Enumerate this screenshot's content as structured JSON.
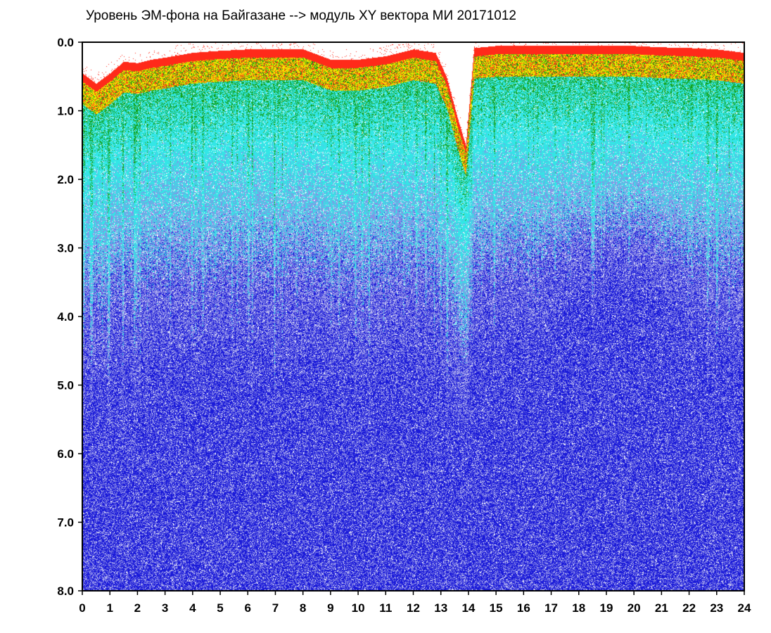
{
  "chart_data": {
    "type": "heatmap",
    "title": "Уровень ЭМ-фона на Байгазане  -->  модуль XY вектора МИ  20171012",
    "xlabel": "",
    "ylabel": "",
    "xlim": [
      0,
      24
    ],
    "ylim": [
      0,
      8
    ],
    "y_inverted": true,
    "grid": false,
    "x_ticks": [
      "0",
      "1",
      "2",
      "3",
      "4",
      "5",
      "6",
      "7",
      "8",
      "9",
      "10",
      "11",
      "12",
      "13",
      "14",
      "15",
      "16",
      "17",
      "18",
      "19",
      "20",
      "21",
      "22",
      "23",
      "24"
    ],
    "y_ticks": [
      "0.0",
      "1.0",
      "2.0",
      "3.0",
      "4.0",
      "5.0",
      "6.0",
      "7.0",
      "8.0"
    ],
    "colorscale": [
      "#ffffff",
      "#ff2a1a",
      "#f2e400",
      "#14a014",
      "#33e6e6",
      "#8c8ce6",
      "#1a1ad9"
    ],
    "upper_envelope": {
      "hours": [
        0,
        0.5,
        1,
        1.5,
        2,
        2.5,
        3,
        4,
        5,
        6,
        7,
        8,
        9,
        10,
        11,
        12,
        12.8,
        13.2,
        13.6,
        13.9,
        14.2,
        15,
        16,
        17,
        18,
        19,
        20,
        21,
        22,
        23,
        24
      ],
      "values": [
        0.45,
        0.6,
        0.45,
        0.28,
        0.3,
        0.25,
        0.22,
        0.15,
        0.12,
        0.1,
        0.1,
        0.1,
        0.25,
        0.25,
        0.2,
        0.1,
        0.15,
        0.5,
        1.1,
        1.5,
        0.08,
        0.05,
        0.05,
        0.05,
        0.05,
        0.05,
        0.05,
        0.07,
        0.08,
        0.1,
        0.15
      ]
    },
    "dense_core": {
      "center_hour": 19.3,
      "center_value": 4.6,
      "spread_hours": 2.2,
      "spread_value": 1.8
    }
  }
}
